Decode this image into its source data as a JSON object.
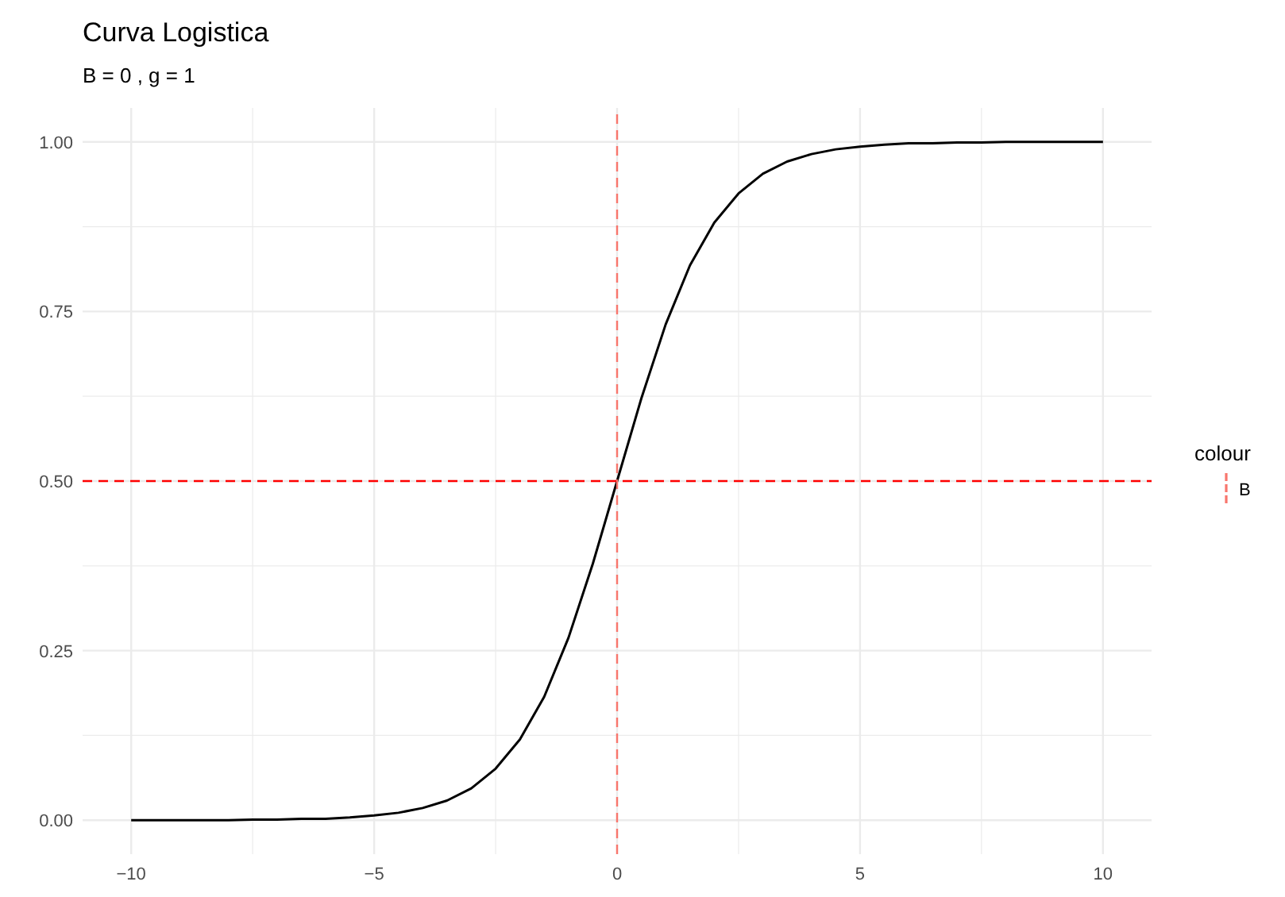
{
  "chart_data": {
    "type": "line",
    "title": "Curva Logistica",
    "subtitle": "B = 0 , g = 1",
    "x": [
      -10,
      -9.5,
      -9,
      -8.5,
      -8,
      -7.5,
      -7,
      -6.5,
      -6,
      -5.5,
      -5,
      -4.5,
      -4,
      -3.5,
      -3,
      -2.5,
      -2,
      -1.5,
      -1,
      -0.5,
      0,
      0.5,
      1,
      1.5,
      2,
      2.5,
      3,
      3.5,
      4,
      4.5,
      5,
      5.5,
      6,
      6.5,
      7,
      7.5,
      8,
      8.5,
      9,
      9.5,
      10
    ],
    "series": [
      {
        "color": "#000000",
        "values": [
          0.0,
          0.0,
          0.0,
          0.0,
          0.0,
          0.001,
          0.001,
          0.002,
          0.002,
          0.004,
          0.007,
          0.011,
          0.018,
          0.029,
          0.047,
          0.076,
          0.119,
          0.182,
          0.269,
          0.378,
          0.5,
          0.622,
          0.731,
          0.818,
          0.881,
          0.924,
          0.953,
          0.971,
          0.982,
          0.989,
          0.993,
          0.996,
          0.998,
          0.998,
          0.999,
          0.999,
          1.0,
          1.0,
          1.0,
          1.0,
          1.0
        ]
      },
      {
        "name": "B",
        "color": "#f8766d",
        "line_style": "dashed",
        "x": [
          0,
          0
        ],
        "values": [
          -0.05,
          1.05
        ]
      }
    ],
    "xlim": [
      -11,
      11
    ],
    "ylim": [
      -0.05,
      1.05
    ],
    "xticks": [
      {
        "value": -10,
        "label": "−10"
      },
      {
        "value": -5,
        "label": "−5"
      },
      0,
      5,
      10
    ],
    "yticks": [
      {
        "value": 0,
        "label": "0.00"
      },
      {
        "value": 0.25,
        "label": "0.25"
      },
      {
        "value": 0.5,
        "label": "0.50"
      },
      {
        "value": 0.75,
        "label": "0.75"
      },
      {
        "value": 1,
        "label": "1.00"
      }
    ],
    "grid": true,
    "legend": "right",
    "legend_title": "colour",
    "line_style": "solid",
    "ref_lines": [
      {
        "axis": "y",
        "value": 0.5,
        "color": "#ff0000",
        "line_style": "dashed"
      }
    ]
  }
}
